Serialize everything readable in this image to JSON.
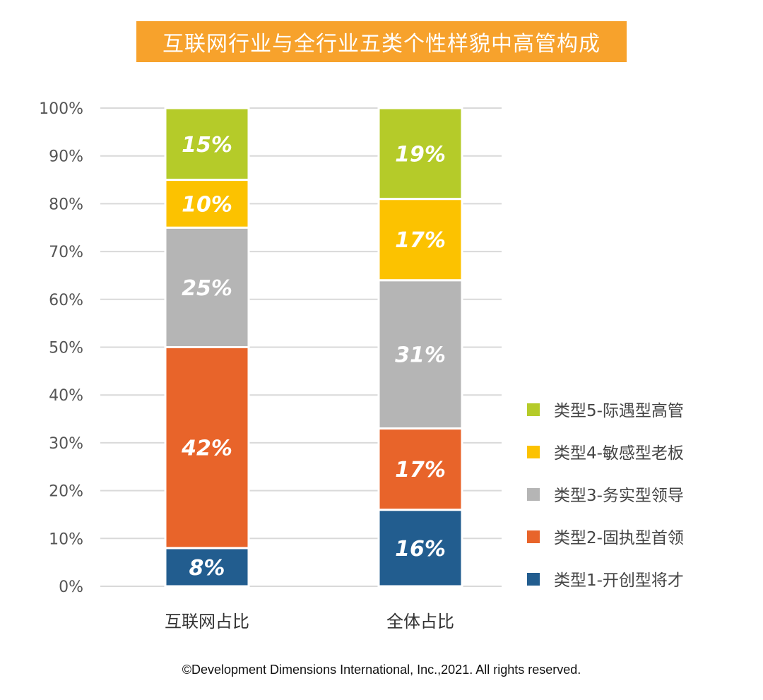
{
  "title": "互联网行业与全行业五类个性样貌中高管构成",
  "copyright": "©Development Dimensions International, Inc.,2021. All rights reserved.",
  "chart_data": {
    "type": "bar",
    "stacked": true,
    "categories": [
      "互联网占比",
      "全体占比"
    ],
    "ylim": [
      0,
      100
    ],
    "yticks": [
      0,
      10,
      20,
      30,
      40,
      50,
      60,
      70,
      80,
      90,
      100
    ],
    "ytick_suffix": "%",
    "grid": true,
    "legend_position": "right",
    "series": [
      {
        "name": "类型1-开创型将才",
        "color": "#225d8f",
        "values": [
          8,
          16
        ]
      },
      {
        "name": "类型2-固执型首领",
        "color": "#e8642a",
        "values": [
          42,
          17
        ]
      },
      {
        "name": "类型3-务实型领导",
        "color": "#b5b5b5",
        "values": [
          25,
          31
        ]
      },
      {
        "name": "类型4-敏感型老板",
        "color": "#fcc200",
        "values": [
          10,
          17
        ]
      },
      {
        "name": "类型5-际遇型高管",
        "color": "#b5cb29",
        "values": [
          15,
          19
        ]
      }
    ]
  }
}
